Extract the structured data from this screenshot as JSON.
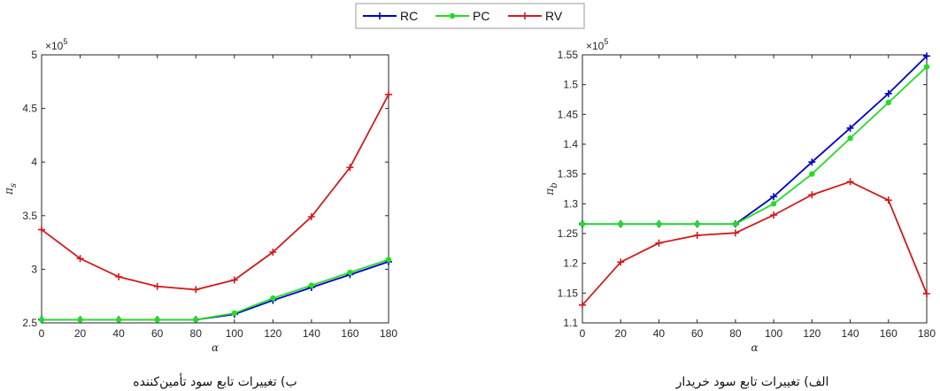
{
  "legend": [
    {
      "name": "RC",
      "color": "#0000c8",
      "marker": "plus"
    },
    {
      "name": "PC",
      "color": "#22dd22",
      "marker": "dot"
    },
    {
      "name": "RV",
      "color": "#d01c1c",
      "marker": "plus"
    }
  ],
  "chart_data": [
    {
      "type": "line",
      "caption": "ب) تغییرات تابع سود تأمین‌کننده",
      "xlabel": "α",
      "ylabel": "π_s",
      "exponent": "×10^5",
      "xlim": [
        0,
        180
      ],
      "ylim": [
        2.5,
        5
      ],
      "xticks": [
        0,
        20,
        40,
        60,
        80,
        100,
        120,
        140,
        160,
        180
      ],
      "yticks": [
        2.5,
        3,
        3.5,
        4,
        4.5,
        5
      ],
      "x": [
        0,
        20,
        40,
        60,
        80,
        100,
        120,
        140,
        160,
        180
      ],
      "series": [
        {
          "name": "RC",
          "values": [
            2.53,
            2.53,
            2.53,
            2.53,
            2.53,
            2.58,
            2.71,
            2.83,
            2.95,
            3.07
          ]
        },
        {
          "name": "PC",
          "values": [
            2.53,
            2.53,
            2.53,
            2.53,
            2.53,
            2.59,
            2.73,
            2.85,
            2.97,
            3.09
          ]
        },
        {
          "name": "RV",
          "values": [
            3.37,
            3.1,
            2.93,
            2.84,
            2.81,
            2.9,
            3.16,
            3.49,
            3.95,
            4.63
          ]
        }
      ]
    },
    {
      "type": "line",
      "caption": "الف) تغییرات تابع سود خریدار",
      "xlabel": "α",
      "ylabel": "π_b",
      "exponent": "×10^5",
      "xlim": [
        0,
        180
      ],
      "ylim": [
        1.1,
        1.55
      ],
      "xticks": [
        0,
        20,
        40,
        60,
        80,
        100,
        120,
        140,
        160,
        180
      ],
      "yticks": [
        1.1,
        1.15,
        1.2,
        1.25,
        1.3,
        1.35,
        1.4,
        1.45,
        1.5,
        1.55
      ],
      "x": [
        0,
        20,
        40,
        60,
        80,
        100,
        120,
        140,
        160,
        180
      ],
      "series": [
        {
          "name": "RC",
          "values": [
            1.266,
            1.266,
            1.266,
            1.266,
            1.266,
            1.312,
            1.37,
            1.427,
            1.485,
            1.548
          ]
        },
        {
          "name": "PC",
          "values": [
            1.266,
            1.266,
            1.266,
            1.266,
            1.266,
            1.3,
            1.35,
            1.41,
            1.47,
            1.53
          ]
        },
        {
          "name": "RV",
          "values": [
            1.13,
            1.202,
            1.234,
            1.247,
            1.251,
            1.281,
            1.315,
            1.337,
            1.306,
            1.149
          ]
        }
      ]
    }
  ]
}
